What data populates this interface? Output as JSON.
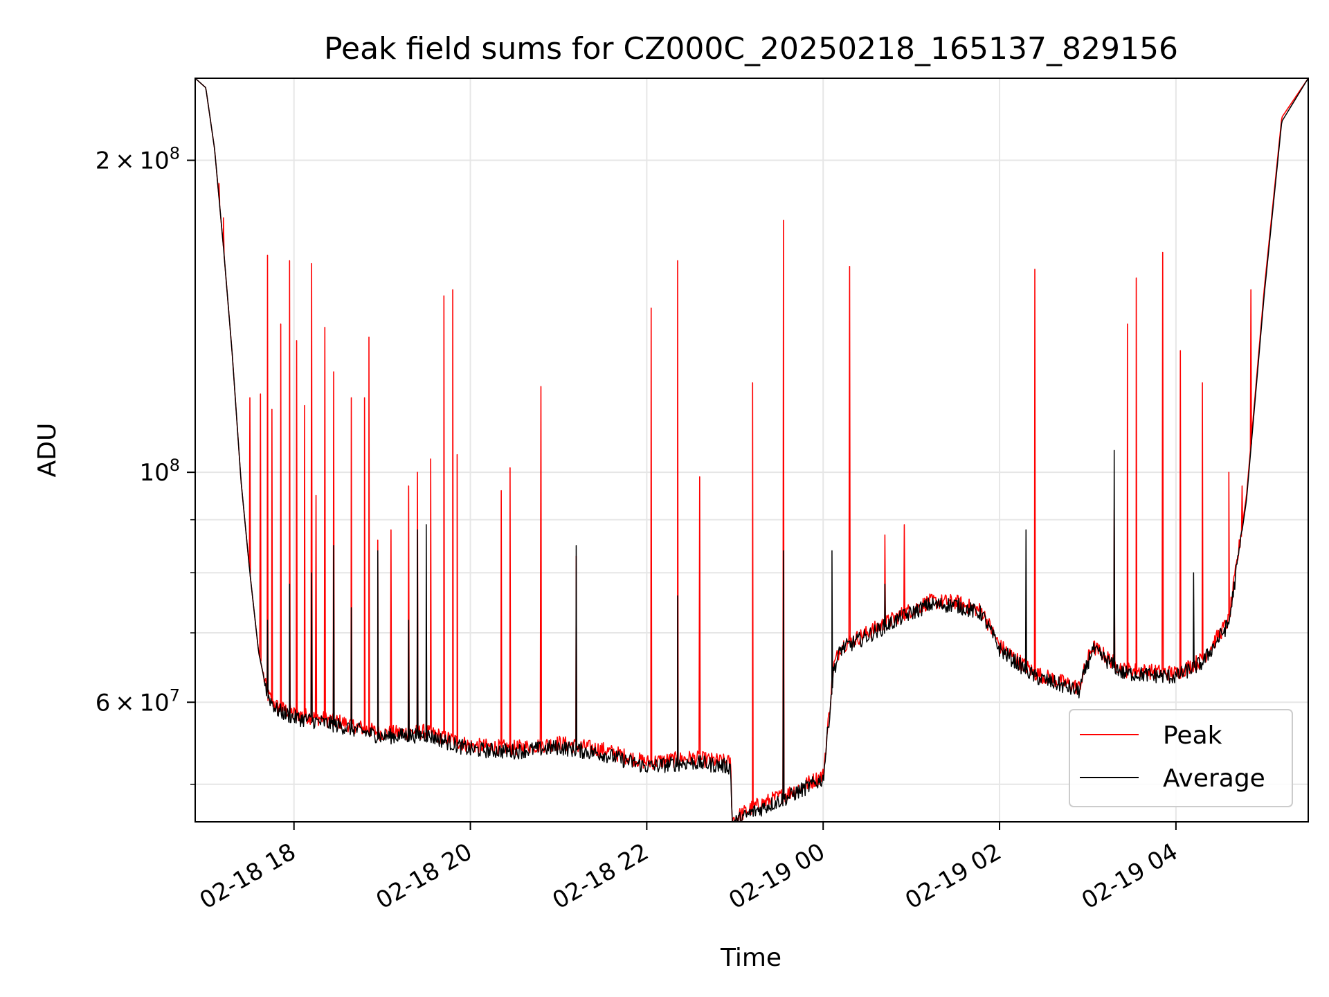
{
  "chart_data": {
    "type": "line",
    "title": "Peak field sums for CZ000C_20250218_165137_829156",
    "xlabel": "Time",
    "ylabel": "ADU",
    "yscale": "log",
    "ylim": [
      46000000,
      240000000
    ],
    "xlim_hours": [
      -1.12,
      11.5
    ],
    "grid": true,
    "legend_position": "lower-right",
    "x_ticks": [
      {
        "label": "02-18 18",
        "hour": 0
      },
      {
        "label": "02-18 20",
        "hour": 2
      },
      {
        "label": "02-18 22",
        "hour": 4
      },
      {
        "label": "02-19 00",
        "hour": 6
      },
      {
        "label": "02-19 02",
        "hour": 8
      },
      {
        "label": "02-19 04",
        "hour": 10
      }
    ],
    "y_major_ticks": [
      {
        "value": 60000000,
        "mantissa": "6",
        "op": "×",
        "base": "10",
        "exp": "7"
      },
      {
        "value": 100000000,
        "mantissa": "",
        "op": "",
        "base": "10",
        "exp": "8"
      },
      {
        "value": 200000000,
        "mantissa": "2",
        "op": "×",
        "base": "10",
        "exp": "8"
      }
    ],
    "y_minor_ticks": [
      50000000,
      70000000,
      80000000,
      90000000
    ],
    "series": [
      {
        "name": "Peak",
        "color": "#ff0000",
        "baseline": [
          [
            -1.12,
            240000000
          ],
          [
            -1.0,
            235000000
          ],
          [
            -0.9,
            205000000
          ],
          [
            -0.8,
            165000000
          ],
          [
            -0.7,
            130000000
          ],
          [
            -0.6,
            98000000
          ],
          [
            -0.5,
            80000000
          ],
          [
            -0.4,
            67000000
          ],
          [
            -0.3,
            61000000
          ],
          [
            -0.2,
            59500000
          ],
          [
            0.0,
            58500000
          ],
          [
            0.5,
            57500000
          ],
          [
            1.0,
            56000000
          ],
          [
            1.5,
            56200000
          ],
          [
            2.0,
            54500000
          ],
          [
            2.5,
            54200000
          ],
          [
            3.0,
            54800000
          ],
          [
            3.5,
            54000000
          ],
          [
            4.0,
            52500000
          ],
          [
            4.5,
            53000000
          ],
          [
            4.95,
            52500000
          ],
          [
            4.97,
            46200000
          ],
          [
            5.2,
            47500000
          ],
          [
            5.6,
            49000000
          ],
          [
            6.0,
            51000000
          ],
          [
            6.12,
            65000000
          ],
          [
            6.2,
            68000000
          ],
          [
            6.5,
            70000000
          ],
          [
            6.9,
            73000000
          ],
          [
            7.2,
            75000000
          ],
          [
            7.5,
            75000000
          ],
          [
            7.8,
            73500000
          ],
          [
            8.0,
            68000000
          ],
          [
            8.4,
            64000000
          ],
          [
            8.9,
            62000000
          ],
          [
            9.05,
            68000000
          ],
          [
            9.4,
            64500000
          ],
          [
            10.0,
            64000000
          ],
          [
            10.3,
            66000000
          ],
          [
            10.6,
            72000000
          ],
          [
            10.8,
            95000000
          ],
          [
            11.0,
            150000000
          ],
          [
            11.2,
            220000000
          ],
          [
            11.5,
            240000000
          ]
        ],
        "spikes": [
          [
            -0.85,
            190000000
          ],
          [
            -0.8,
            176000000
          ],
          [
            -0.5,
            118000000
          ],
          [
            -0.38,
            119000000
          ],
          [
            -0.3,
            162000000
          ],
          [
            -0.25,
            115000000
          ],
          [
            -0.15,
            139000000
          ],
          [
            -0.05,
            160000000
          ],
          [
            0.03,
            134000000
          ],
          [
            0.12,
            116000000
          ],
          [
            0.2,
            159000000
          ],
          [
            0.25,
            95000000
          ],
          [
            0.35,
            138000000
          ],
          [
            0.45,
            125000000
          ],
          [
            0.65,
            118000000
          ],
          [
            0.8,
            118000000
          ],
          [
            0.85,
            135000000
          ],
          [
            0.95,
            86000000
          ],
          [
            1.1,
            88000000
          ],
          [
            1.3,
            97000000
          ],
          [
            1.4,
            100000000
          ],
          [
            1.55,
            103000000
          ],
          [
            1.7,
            148000000
          ],
          [
            1.8,
            150000000
          ],
          [
            1.85,
            104000000
          ],
          [
            2.35,
            96000000
          ],
          [
            2.45,
            101000000
          ],
          [
            2.8,
            121000000
          ],
          [
            3.2,
            83000000
          ],
          [
            4.05,
            144000000
          ],
          [
            4.35,
            160000000
          ],
          [
            4.6,
            99000000
          ],
          [
            5.2,
            122000000
          ],
          [
            5.55,
            175000000
          ],
          [
            6.3,
            158000000
          ],
          [
            6.7,
            87000000
          ],
          [
            6.92,
            89000000
          ],
          [
            8.4,
            157000000
          ],
          [
            9.3,
            92000000
          ],
          [
            9.45,
            139000000
          ],
          [
            9.55,
            154000000
          ],
          [
            9.85,
            163000000
          ],
          [
            10.05,
            131000000
          ],
          [
            10.3,
            122000000
          ],
          [
            10.6,
            100000000
          ],
          [
            10.75,
            97000000
          ],
          [
            10.85,
            150000000
          ]
        ]
      },
      {
        "name": "Average",
        "color": "#000000",
        "baseline": [
          [
            -1.12,
            240000000
          ],
          [
            -1.0,
            235000000
          ],
          [
            -0.9,
            205000000
          ],
          [
            -0.8,
            165000000
          ],
          [
            -0.7,
            130000000
          ],
          [
            -0.6,
            98000000
          ],
          [
            -0.5,
            80000000
          ],
          [
            -0.4,
            67000000
          ],
          [
            -0.3,
            61000000
          ],
          [
            -0.2,
            59000000
          ],
          [
            0.0,
            58000000
          ],
          [
            0.5,
            57000000
          ],
          [
            1.0,
            55600000
          ],
          [
            1.5,
            55800000
          ],
          [
            2.0,
            54000000
          ],
          [
            2.5,
            53800000
          ],
          [
            3.0,
            54300000
          ],
          [
            3.5,
            53500000
          ],
          [
            4.0,
            52000000
          ],
          [
            4.5,
            52500000
          ],
          [
            4.95,
            52000000
          ],
          [
            4.97,
            45800000
          ],
          [
            5.2,
            47000000
          ],
          [
            5.6,
            48600000
          ],
          [
            6.0,
            50600000
          ],
          [
            6.12,
            64500000
          ],
          [
            6.2,
            67500000
          ],
          [
            6.5,
            69500000
          ],
          [
            6.9,
            72500000
          ],
          [
            7.2,
            74500000
          ],
          [
            7.5,
            74500000
          ],
          [
            7.8,
            73000000
          ],
          [
            8.0,
            67500000
          ],
          [
            8.4,
            63500000
          ],
          [
            8.9,
            61500000
          ],
          [
            9.05,
            67500000
          ],
          [
            9.4,
            64000000
          ],
          [
            10.0,
            63500000
          ],
          [
            10.3,
            65500000
          ],
          [
            10.6,
            71500000
          ],
          [
            10.8,
            94000000
          ],
          [
            11.0,
            148000000
          ],
          [
            11.2,
            218000000
          ],
          [
            11.5,
            240000000
          ]
        ],
        "spikes": [
          [
            -0.3,
            72000000
          ],
          [
            -0.05,
            78000000
          ],
          [
            0.2,
            80000000
          ],
          [
            0.45,
            85000000
          ],
          [
            0.65,
            74000000
          ],
          [
            0.95,
            84000000
          ],
          [
            1.3,
            72000000
          ],
          [
            1.4,
            88000000
          ],
          [
            1.5,
            89000000
          ],
          [
            3.2,
            85000000
          ],
          [
            4.35,
            76000000
          ],
          [
            5.55,
            84000000
          ],
          [
            6.1,
            84000000
          ],
          [
            6.7,
            78000000
          ],
          [
            8.3,
            88000000
          ],
          [
            9.3,
            105000000
          ],
          [
            10.2,
            80000000
          ]
        ]
      }
    ]
  }
}
